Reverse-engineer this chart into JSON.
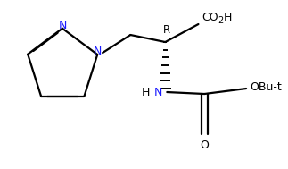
{
  "bg_color": "#ffffff",
  "line_color": "#000000",
  "n_color": "#1a1aff",
  "lw": 1.6,
  "dlo": 0.008,
  "figsize": [
    3.23,
    1.89
  ],
  "dpi": 100,
  "xlim": [
    0,
    323
  ],
  "ylim": [
    0,
    189
  ]
}
